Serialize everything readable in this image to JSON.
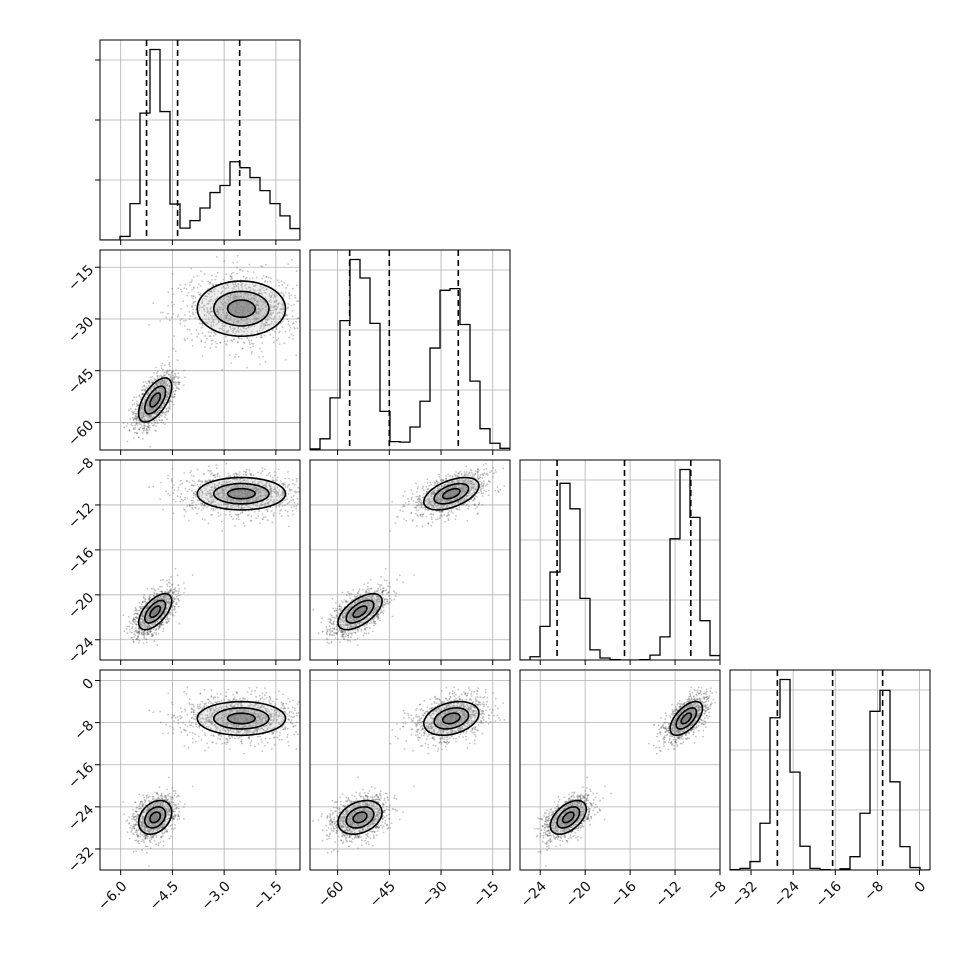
{
  "chart_data": {
    "type": "corner",
    "parameters": 4,
    "axis_label_text": [
      "",
      "",
      "",
      ""
    ],
    "grid": true,
    "colors": {
      "line": "#000000",
      "points": "#555555",
      "grid": "#b0b0b0"
    },
    "ranges": [
      [
        -6.6,
        -0.8
      ],
      [
        -68,
        -10
      ],
      [
        -25.8,
        -8
      ],
      [
        -36,
        2
      ]
    ],
    "x_ticks": [
      [
        "-6.0",
        "-4.5",
        "-3.0",
        "-1.5"
      ],
      [
        "-60",
        "-45",
        "-30",
        "-15"
      ],
      [
        "-24",
        "-20",
        "-16",
        "-12",
        "-8"
      ],
      [
        "-32",
        "-24",
        "-16",
        "-8",
        "0"
      ]
    ],
    "y_ticks": [
      null,
      [
        "-15",
        "-30",
        "-45",
        "-60"
      ],
      [
        "-8",
        "-12",
        "-16",
        "-20",
        "-24"
      ],
      [
        "0",
        "-8",
        "-16",
        "-24",
        "-32"
      ]
    ],
    "quantiles": [
      [
        -5.25,
        -4.35,
        -2.55
      ],
      [
        -56.5,
        -45,
        -25
      ],
      [
        -22.5,
        -16.5,
        -10.6
      ],
      [
        -27,
        -16.5,
        -7
      ]
    ],
    "modes": [
      {
        "weight": 0.5,
        "mean": [
          -5.0,
          -53.5,
          -21.5,
          -26.0
        ],
        "sd": [
          0.3,
          4.0,
          1.0,
          2.0
        ],
        "corr": [
          [
            1.0,
            0.6,
            0.6,
            0.3
          ],
          [
            0.6,
            1.0,
            0.6,
            0.3
          ],
          [
            0.6,
            0.6,
            1.0,
            0.5
          ],
          [
            0.3,
            0.3,
            0.5,
            1.0
          ]
        ]
      },
      {
        "weight": 0.5,
        "mean": [
          -2.5,
          -27.0,
          -11.0,
          -7.2
        ],
        "sd": [
          0.8,
          5.0,
          0.9,
          2.0
        ],
        "corr": [
          [
            1.0,
            0.0,
            0.0,
            0.0
          ],
          [
            0.0,
            1.0,
            0.5,
            0.3
          ],
          [
            0.0,
            0.5,
            1.0,
            0.6
          ],
          [
            0.0,
            0.3,
            0.6,
            1.0
          ]
        ]
      }
    ]
  }
}
